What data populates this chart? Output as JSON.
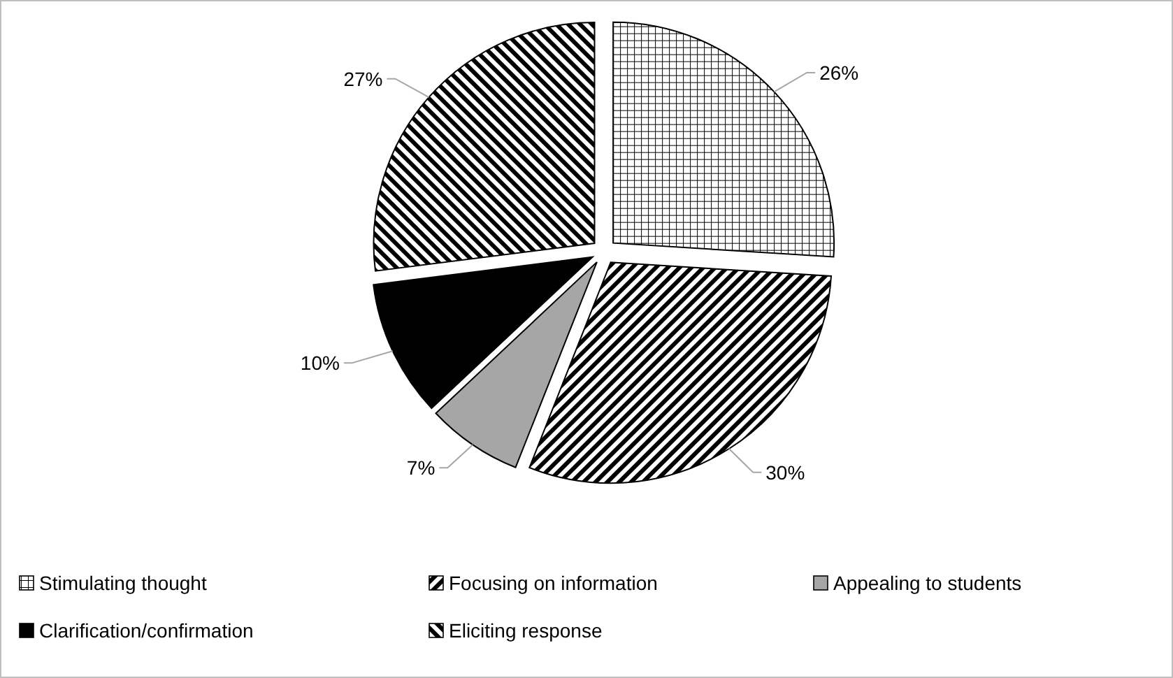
{
  "chart_data": {
    "type": "pie",
    "categories": [
      "Stimulating thought",
      "Focusing on information",
      "Appealing to students",
      "Clarification/confirmation",
      "Eliciting response"
    ],
    "values": [
      26,
      30,
      7,
      10,
      27
    ],
    "colors": [
      "#000000",
      "#000000",
      "#a6a6a6",
      "#000000",
      "#000000"
    ],
    "value_labels": [
      "26%",
      "30%",
      "7%",
      "10%",
      "27%"
    ],
    "legend": "bottom"
  }
}
